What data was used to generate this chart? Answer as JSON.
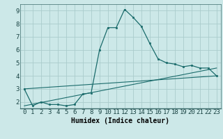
{
  "xlabel": "Humidex (Indice chaleur)",
  "background_color": "#cce8e8",
  "grid_color": "#aacccc",
  "line_color": "#1a6b6b",
  "line1_x": [
    0,
    1,
    2,
    3,
    4,
    5,
    6,
    7,
    8,
    9,
    10,
    11,
    12,
    13,
    14,
    15,
    16,
    17,
    18,
    19,
    20,
    21,
    22,
    23
  ],
  "line1_y": [
    3.0,
    1.7,
    2.0,
    1.8,
    1.8,
    1.7,
    1.8,
    2.6,
    2.7,
    6.0,
    7.7,
    7.7,
    9.1,
    8.5,
    7.8,
    6.5,
    5.3,
    5.0,
    4.9,
    4.7,
    4.8,
    4.6,
    4.6,
    4.0
  ],
  "line2_x": [
    0,
    23
  ],
  "line2_y": [
    3.0,
    4.0
  ],
  "line3_x": [
    0,
    23
  ],
  "line3_y": [
    1.7,
    4.6
  ],
  "xlim": [
    -0.5,
    23.5
  ],
  "ylim": [
    1.5,
    9.5
  ],
  "yticks": [
    2,
    3,
    4,
    5,
    6,
    7,
    8,
    9
  ],
  "xticks": [
    0,
    1,
    2,
    3,
    4,
    5,
    6,
    7,
    8,
    9,
    10,
    11,
    12,
    13,
    14,
    15,
    16,
    17,
    18,
    19,
    20,
    21,
    22,
    23
  ],
  "xlabel_fontsize": 7,
  "tick_fontsize": 6.5,
  "bottom_color": "#3a6b6b"
}
